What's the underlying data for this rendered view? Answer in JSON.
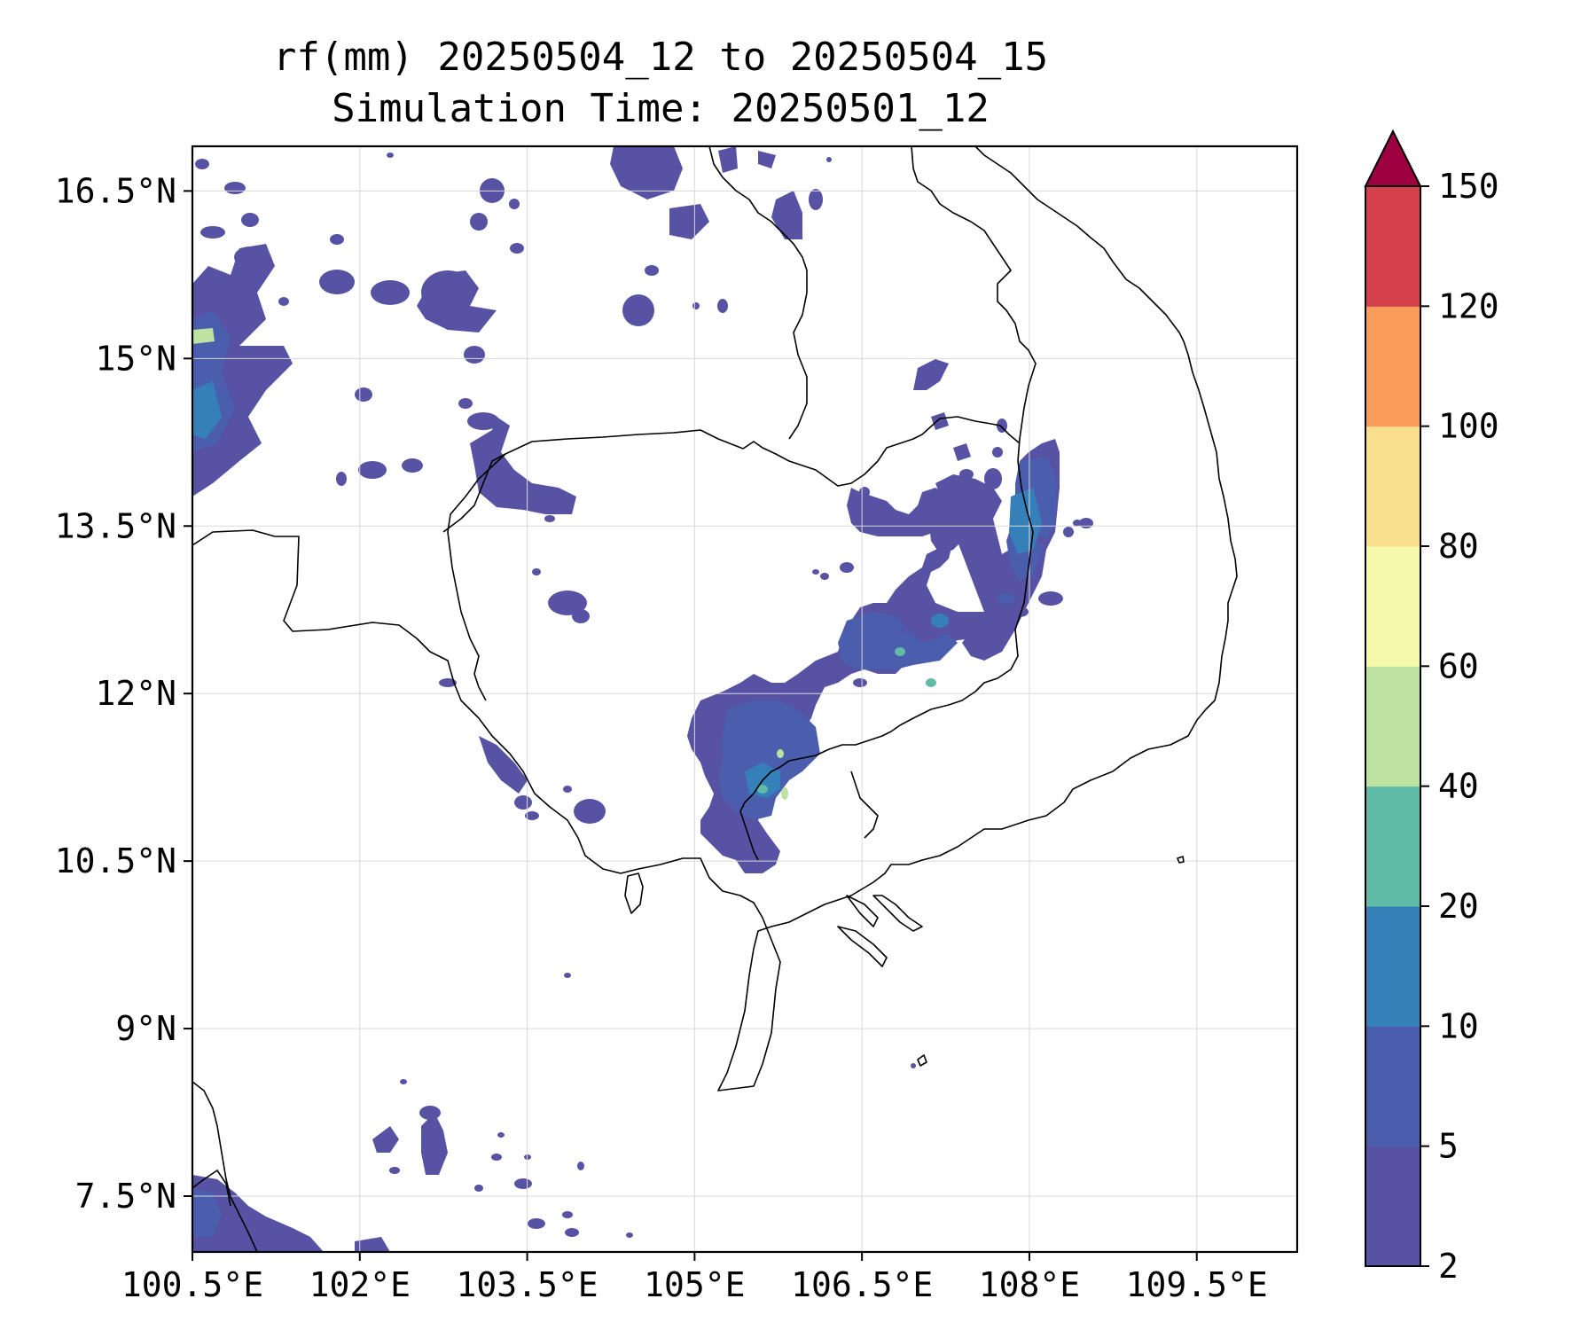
{
  "title": {
    "line1": "rf(mm) 20250504_12 to 20250504_15",
    "line2": "Simulation Time: 20250501_12"
  },
  "map": {
    "lon_ticks": [
      "100.5°E",
      "102°E",
      "103.5°E",
      "105°E",
      "106.5°E",
      "108°E",
      "109.5°E"
    ],
    "lat_ticks": [
      "16.5°N",
      "15°N",
      "13.5°N",
      "12°N",
      "10.5°N",
      "9°N",
      "7.5°N"
    ],
    "lon_range": [
      100.5,
      110.4
    ],
    "lat_range": [
      7.0,
      16.9
    ],
    "grid": true,
    "region_shown": "Cambodia, southern Vietnam, southern Laos, eastern Thailand, Gulf of Thailand"
  },
  "colorbar": {
    "levels": [
      "2",
      "5",
      "10",
      "20",
      "40",
      "60",
      "80",
      "100",
      "120",
      "150"
    ],
    "colors": [
      "#5752a3",
      "#4a5ead",
      "#3580b9",
      "#61bca7",
      "#bde2a2",
      "#f4f9ac",
      "#fae08c",
      "#f99c5a",
      "#d6404d"
    ],
    "extend_color": "#9e0142",
    "extend": "max"
  },
  "rain_color": "#5752a3",
  "rain_light": "#4a5ead",
  "rain_mid": "#3580b9",
  "rain_high": "#61bca7",
  "rain_peak": "#bde2a2"
}
